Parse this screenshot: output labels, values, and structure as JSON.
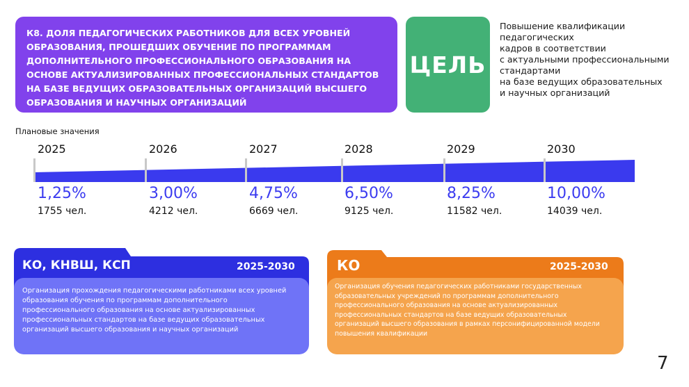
{
  "header": {
    "title": "К8. ДОЛЯ ПЕДАГОГИЧЕСКИХ РАБОТНИКОВ ДЛЯ ВСЕХ УРОВНЕЙ ОБРАЗОВАНИЯ, ПРОШЕДШИХ ОБУЧЕНИЕ ПО ПРОГРАММАМ ДОПОЛНИТЕЛЬНОГО ПРОФЕССИОНАЛЬНОГО ОБРАЗОВАНИЯ НА ОСНОВЕ АКТУАЛИЗИРОВАННЫХ ПРОФЕССИОНАЛЬНЫХ СТАНДАРТОВ НА БАЗЕ ВЕДУЩИХ ОБРАЗОВАТЕЛЬНЫХ ОРГАНИЗАЦИЙ ВЫСШЕГО ОБРАЗОВАНИЯ И НАУЧНЫХ ОРГАНИЗАЦИЙ"
  },
  "goal": {
    "label": "ЦЕЛЬ",
    "lines": [
      "Повышение квалификации",
      "педагогических",
      "кадров в соответствии",
      "с актуальными профессиональными",
      "стандартами",
      "на базе ведущих образовательных",
      "и научных организаций"
    ]
  },
  "timeline": {
    "label": "Плановые значения",
    "points": [
      {
        "year": "2025",
        "percent": "1,25%",
        "count": "1755 чел."
      },
      {
        "year": "2026",
        "percent": "3,00%",
        "count": "4212 чел."
      },
      {
        "year": "2027",
        "percent": "4,75%",
        "count": "6669 чел."
      },
      {
        "year": "2028",
        "percent": "6,50%",
        "count": "9125 чел."
      },
      {
        "year": "2029",
        "percent": "8,25%",
        "count": "11582 чел."
      },
      {
        "year": "2030",
        "percent": "10,00%",
        "count": "14039 чел."
      }
    ]
  },
  "cards": [
    {
      "title": "КО, КНВШ, КСП",
      "period": "2025-2030",
      "text": "Организация прохождения педагогическими работниками  всех уровней образования обучения по программам дополнительного профессионального образования на основе актуализированных профессиональных стандартов на базе ведущих образовательных организаций высшего образования и научных организаций"
    },
    {
      "title": "КО",
      "period": "2025-2030",
      "text": "Организация обучения педагогических работниками  государственных образовательных учреждений по программам дополнительного профессионального образования на основе актуализированных профессиональных стандартов на базе ведущих образовательных организаций высшего образования в рамках персонифицированной модели повышения квалификации"
    }
  ],
  "page_number": "7",
  "colors": {
    "purple": "#8142ec",
    "green": "#43b176",
    "blue_dark": "#2d2fe0",
    "blue_light": "#6f73f7",
    "orange_dark": "#ec7b1a",
    "orange_light": "#f5a44d",
    "percent_blue": "#3b3bf0"
  }
}
